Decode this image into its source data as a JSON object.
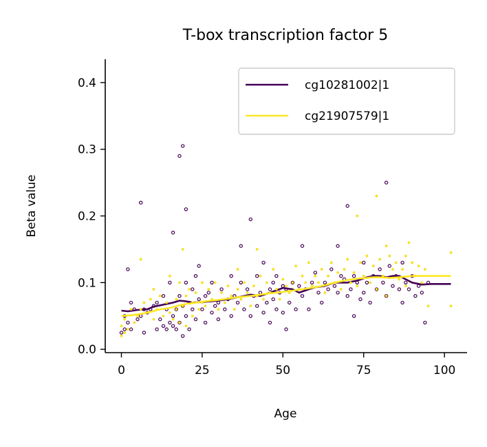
{
  "chart_data": {
    "type": "scatter",
    "title": "T-box transcription factor 5",
    "xlabel": "Age",
    "ylabel": "Beta value",
    "xlim": [
      -5,
      107
    ],
    "ylim": [
      -0.005,
      0.435
    ],
    "xticks": [
      0,
      25,
      50,
      75,
      100
    ],
    "yticks": [
      0.0,
      0.1,
      0.2,
      0.3,
      0.4
    ],
    "xtick_labels": [
      "0",
      "25",
      "50",
      "75",
      "100"
    ],
    "ytick_labels": [
      "0.0",
      "0.1",
      "0.2",
      "0.3",
      "0.4"
    ],
    "grid": false,
    "legend": "top-right",
    "series": [
      {
        "name": "cg10281002|1",
        "color": "#440154",
        "points": [
          [
            0,
            0.025
          ],
          [
            1,
            0.03
          ],
          [
            1,
            0.05
          ],
          [
            2,
            0.04
          ],
          [
            2,
            0.12
          ],
          [
            3,
            0.07
          ],
          [
            3,
            0.03
          ],
          [
            4,
            0.06
          ],
          [
            5,
            0.045
          ],
          [
            6,
            0.22
          ],
          [
            6,
            0.05
          ],
          [
            7,
            0.06
          ],
          [
            7,
            0.025
          ],
          [
            8,
            0.055
          ],
          [
            9,
            0.06
          ],
          [
            10,
            0.065
          ],
          [
            11,
            0.07
          ],
          [
            11,
            0.03
          ],
          [
            12,
            0.045
          ],
          [
            13,
            0.035
          ],
          [
            13,
            0.08
          ],
          [
            14,
            0.03
          ],
          [
            14,
            0.06
          ],
          [
            15,
            0.04
          ],
          [
            15,
            0.1
          ],
          [
            16,
            0.05
          ],
          [
            16,
            0.175
          ],
          [
            16,
            0.035
          ],
          [
            17,
            0.06
          ],
          [
            17,
            0.03
          ],
          [
            18,
            0.08
          ],
          [
            18,
            0.04
          ],
          [
            19,
            0.065
          ],
          [
            19,
            0.02
          ],
          [
            20,
            0.1
          ],
          [
            20,
            0.05
          ],
          [
            21,
            0.07
          ],
          [
            21,
            0.03
          ],
          [
            22,
            0.09
          ],
          [
            22,
            0.06
          ],
          [
            23,
            0.11
          ],
          [
            23,
            0.045
          ],
          [
            24,
            0.075
          ],
          [
            24,
            0.125
          ],
          [
            25,
            0.06
          ],
          [
            26,
            0.08
          ],
          [
            26,
            0.04
          ],
          [
            27,
            0.085
          ],
          [
            28,
            0.055
          ],
          [
            28,
            0.1
          ],
          [
            29,
            0.065
          ],
          [
            30,
            0.07
          ],
          [
            30,
            0.045
          ],
          [
            31,
            0.09
          ],
          [
            32,
            0.06
          ],
          [
            33,
            0.075
          ],
          [
            34,
            0.05
          ],
          [
            34,
            0.11
          ],
          [
            35,
            0.08
          ],
          [
            36,
            0.07
          ],
          [
            37,
            0.1
          ],
          [
            37,
            0.155
          ],
          [
            38,
            0.06
          ],
          [
            39,
            0.09
          ],
          [
            40,
            0.05
          ],
          [
            40,
            0.195
          ],
          [
            41,
            0.08
          ],
          [
            42,
            0.065
          ],
          [
            42,
            0.11
          ],
          [
            43,
            0.085
          ],
          [
            44,
            0.055
          ],
          [
            44,
            0.13
          ],
          [
            45,
            0.07
          ],
          [
            46,
            0.09
          ],
          [
            46,
            0.04
          ],
          [
            47,
            0.1
          ],
          [
            47,
            0.075
          ],
          [
            48,
            0.06
          ],
          [
            48,
            0.11
          ],
          [
            49,
            0.085
          ],
          [
            50,
            0.055
          ],
          [
            50,
            0.095
          ],
          [
            51,
            0.09
          ],
          [
            51,
            0.03
          ],
          [
            52,
            0.07
          ],
          [
            53,
            0.1
          ],
          [
            54,
            0.06
          ],
          [
            55,
            0.095
          ],
          [
            56,
            0.155
          ],
          [
            56,
            0.08
          ],
          [
            57,
            0.09
          ],
          [
            58,
            0.06
          ],
          [
            59,
            0.1
          ],
          [
            60,
            0.115
          ],
          [
            61,
            0.085
          ],
          [
            62,
            0.07
          ],
          [
            63,
            0.1
          ],
          [
            64,
            0.09
          ],
          [
            65,
            0.12
          ],
          [
            66,
            0.095
          ],
          [
            67,
            0.085
          ],
          [
            67,
            0.155
          ],
          [
            68,
            0.11
          ],
          [
            69,
            0.105
          ],
          [
            70,
            0.215
          ],
          [
            70,
            0.08
          ],
          [
            71,
            0.09
          ],
          [
            72,
            0.11
          ],
          [
            72,
            0.05
          ],
          [
            73,
            0.1
          ],
          [
            74,
            0.075
          ],
          [
            75,
            0.085
          ],
          [
            75,
            0.13
          ],
          [
            76,
            0.1
          ],
          [
            77,
            0.07
          ],
          [
            78,
            0.11
          ],
          [
            79,
            0.09
          ],
          [
            80,
            0.12
          ],
          [
            81,
            0.1
          ],
          [
            82,
            0.25
          ],
          [
            82,
            0.08
          ],
          [
            83,
            0.125
          ],
          [
            84,
            0.095
          ],
          [
            85,
            0.11
          ],
          [
            86,
            0.09
          ],
          [
            87,
            0.13
          ],
          [
            87,
            0.07
          ],
          [
            88,
            0.1
          ],
          [
            89,
            0.09
          ],
          [
            90,
            0.11
          ],
          [
            91,
            0.08
          ],
          [
            92,
            0.095
          ],
          [
            93,
            0.085
          ],
          [
            94,
            0.04
          ],
          [
            95,
            0.1
          ]
        ],
        "outliers": [
          [
            18,
            0.29
          ],
          [
            19,
            0.305
          ],
          [
            20,
            0.21
          ]
        ],
        "trend": [
          [
            0,
            0.058
          ],
          [
            2,
            0.057
          ],
          [
            5,
            0.059
          ],
          [
            8,
            0.06
          ],
          [
            10,
            0.064
          ],
          [
            12,
            0.066
          ],
          [
            14,
            0.068
          ],
          [
            16,
            0.07
          ],
          [
            18,
            0.073
          ],
          [
            20,
            0.072
          ],
          [
            22,
            0.07
          ],
          [
            25,
            0.071
          ],
          [
            28,
            0.072
          ],
          [
            30,
            0.073
          ],
          [
            33,
            0.075
          ],
          [
            36,
            0.078
          ],
          [
            40,
            0.082
          ],
          [
            43,
            0.08
          ],
          [
            46,
            0.085
          ],
          [
            50,
            0.092
          ],
          [
            53,
            0.09
          ],
          [
            55,
            0.085
          ],
          [
            58,
            0.09
          ],
          [
            60,
            0.093
          ],
          [
            63,
            0.095
          ],
          [
            66,
            0.1
          ],
          [
            70,
            0.1
          ],
          [
            73,
            0.103
          ],
          [
            76,
            0.108
          ],
          [
            78,
            0.11
          ],
          [
            80,
            0.11
          ],
          [
            82,
            0.108
          ],
          [
            84,
            0.11
          ],
          [
            86,
            0.11
          ],
          [
            88,
            0.105
          ],
          [
            90,
            0.1
          ],
          [
            93,
            0.097
          ],
          [
            96,
            0.098
          ],
          [
            100,
            0.098
          ],
          [
            102,
            0.098
          ]
        ]
      },
      {
        "name": "cg21907579|1",
        "color": "#fde725",
        "points": [
          [
            0,
            0.02
          ],
          [
            0,
            0.035
          ],
          [
            1,
            0.025
          ],
          [
            1,
            0.045
          ],
          [
            2,
            0.03
          ],
          [
            3,
            0.06
          ],
          [
            4,
            0.04
          ],
          [
            5,
            0.05
          ],
          [
            6,
            0.135
          ],
          [
            6,
            0.06
          ],
          [
            7,
            0.07
          ],
          [
            8,
            0.055
          ],
          [
            9,
            0.075
          ],
          [
            10,
            0.045
          ],
          [
            10,
            0.09
          ],
          [
            11,
            0.06
          ],
          [
            12,
            0.08
          ],
          [
            13,
            0.05
          ],
          [
            14,
            0.07
          ],
          [
            15,
            0.055
          ],
          [
            15,
            0.11
          ],
          [
            16,
            0.045
          ],
          [
            17,
            0.075
          ],
          [
            17,
            0.06
          ],
          [
            18,
            0.1
          ],
          [
            18,
            0.04
          ],
          [
            19,
            0.15
          ],
          [
            19,
            0.065
          ],
          [
            20,
            0.08
          ],
          [
            20,
            0.035
          ],
          [
            21,
            0.09
          ],
          [
            22,
            0.07
          ],
          [
            22,
            0.05
          ],
          [
            23,
            0.085
          ],
          [
            24,
            0.06
          ],
          [
            25,
            0.1
          ],
          [
            25,
            0.07
          ],
          [
            26,
            0.065
          ],
          [
            27,
            0.09
          ],
          [
            28,
            0.075
          ],
          [
            29,
            0.1
          ],
          [
            30,
            0.06
          ],
          [
            31,
            0.085
          ],
          [
            32,
            0.07
          ],
          [
            33,
            0.095
          ],
          [
            34,
            0.08
          ],
          [
            35,
            0.06
          ],
          [
            36,
            0.12
          ],
          [
            36,
            0.09
          ],
          [
            37,
            0.075
          ],
          [
            38,
            0.1
          ],
          [
            39,
            0.085
          ],
          [
            40,
            0.065
          ],
          [
            41,
            0.095
          ],
          [
            42,
            0.15
          ],
          [
            42,
            0.08
          ],
          [
            43,
            0.11
          ],
          [
            44,
            0.075
          ],
          [
            45,
            0.1
          ],
          [
            46,
            0.085
          ],
          [
            47,
            0.12
          ],
          [
            48,
            0.09
          ],
          [
            49,
            0.075
          ],
          [
            50,
            0.105
          ],
          [
            51,
            0.095
          ],
          [
            52,
            0.085
          ],
          [
            53,
            0.1
          ],
          [
            54,
            0.125
          ],
          [
            55,
            0.09
          ],
          [
            56,
            0.11
          ],
          [
            57,
            0.1
          ],
          [
            58,
            0.13
          ],
          [
            59,
            0.095
          ],
          [
            60,
            0.11
          ],
          [
            61,
            0.1
          ],
          [
            62,
            0.12
          ],
          [
            63,
            0.085
          ],
          [
            64,
            0.11
          ],
          [
            65,
            0.13
          ],
          [
            66,
            0.1
          ],
          [
            67,
            0.115
          ],
          [
            68,
            0.09
          ],
          [
            69,
            0.12
          ],
          [
            70,
            0.135
          ],
          [
            71,
            0.1
          ],
          [
            72,
            0.115
          ],
          [
            73,
            0.2
          ],
          [
            73,
            0.095
          ],
          [
            74,
            0.13
          ],
          [
            75,
            0.11
          ],
          [
            76,
            0.14
          ],
          [
            77,
            0.1
          ],
          [
            78,
            0.125
          ],
          [
            79,
            0.23
          ],
          [
            79,
            0.09
          ],
          [
            80,
            0.135
          ],
          [
            81,
            0.11
          ],
          [
            82,
            0.155
          ],
          [
            82,
            0.08
          ],
          [
            83,
            0.14
          ],
          [
            84,
            0.12
          ],
          [
            85,
            0.13
          ],
          [
            86,
            0.105
          ],
          [
            87,
            0.12
          ],
          [
            88,
            0.14
          ],
          [
            88,
            0.095
          ],
          [
            89,
            0.16
          ],
          [
            90,
            0.13
          ],
          [
            91,
            0.11
          ],
          [
            92,
            0.125
          ],
          [
            93,
            0.1
          ],
          [
            94,
            0.12
          ],
          [
            95,
            0.065
          ],
          [
            102,
            0.145
          ],
          [
            102,
            0.065
          ]
        ],
        "outliers": [],
        "trend": [
          [
            0,
            0.05
          ],
          [
            3,
            0.051
          ],
          [
            6,
            0.053
          ],
          [
            9,
            0.056
          ],
          [
            12,
            0.06
          ],
          [
            15,
            0.062
          ],
          [
            18,
            0.066
          ],
          [
            20,
            0.068
          ],
          [
            23,
            0.07
          ],
          [
            26,
            0.072
          ],
          [
            30,
            0.074
          ],
          [
            33,
            0.076
          ],
          [
            36,
            0.078
          ],
          [
            40,
            0.08
          ],
          [
            43,
            0.082
          ],
          [
            46,
            0.084
          ],
          [
            50,
            0.086
          ],
          [
            53,
            0.088
          ],
          [
            56,
            0.09
          ],
          [
            60,
            0.093
          ],
          [
            63,
            0.096
          ],
          [
            66,
            0.1
          ],
          [
            70,
            0.104
          ],
          [
            73,
            0.106
          ],
          [
            76,
            0.107
          ],
          [
            78,
            0.108
          ],
          [
            80,
            0.108
          ],
          [
            83,
            0.107
          ],
          [
            86,
            0.108
          ],
          [
            90,
            0.11
          ],
          [
            94,
            0.11
          ],
          [
            98,
            0.11
          ],
          [
            102,
            0.11
          ]
        ]
      }
    ]
  }
}
